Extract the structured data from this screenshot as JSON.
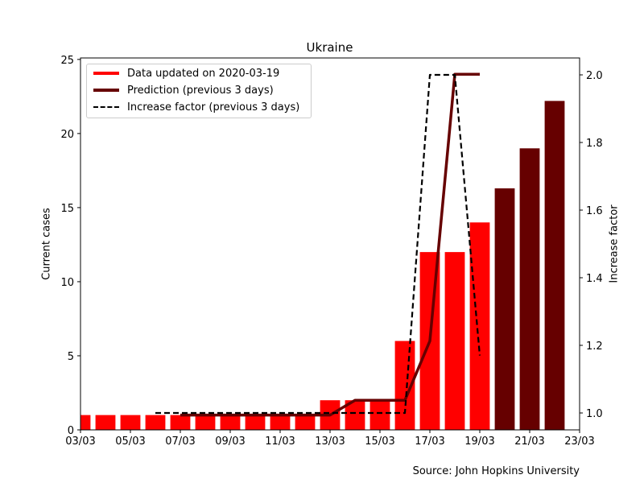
{
  "chart_data": {
    "type": "bar",
    "title": "Ukraine",
    "ylabel": "Current cases",
    "y2label": "Increase factor",
    "source": "Source: John Hopkins University",
    "xticks": [
      "03/03",
      "05/03",
      "07/03",
      "09/03",
      "11/03",
      "13/03",
      "15/03",
      "17/03",
      "19/03",
      "21/03",
      "23/03"
    ],
    "yticks": [
      "0",
      "5",
      "10",
      "15",
      "20",
      "25"
    ],
    "y2ticks": [
      "1.0",
      "1.2",
      "1.4",
      "1.6",
      "1.8",
      "2.0"
    ],
    "ylim": [
      0,
      25.1
    ],
    "y2lim": [
      0.95,
      2.05
    ],
    "xlim": [
      "03/03",
      "23/03"
    ],
    "legend_position": "top-left",
    "legend": [
      {
        "label": "Data updated on 2020-03-19",
        "color": "#ff0000",
        "style": "solid"
      },
      {
        "label": "Prediction (previous 3 days)",
        "color": "#660000",
        "style": "solid"
      },
      {
        "label": "Increase factor (previous 3 days)",
        "color": "#000000",
        "style": "dashed"
      }
    ],
    "series": [
      {
        "name": "Data updated on 2020-03-19",
        "color": "#ff0000",
        "kind": "bar",
        "x": [
          "03/03",
          "04/03",
          "05/03",
          "06/03",
          "07/03",
          "08/03",
          "09/03",
          "10/03",
          "11/03",
          "12/03",
          "13/03",
          "14/03",
          "15/03",
          "16/03",
          "17/03",
          "18/03",
          "19/03"
        ],
        "values": [
          1,
          1,
          1,
          1,
          1,
          1,
          1,
          1,
          1,
          1,
          2,
          2,
          2,
          6,
          12,
          12,
          14
        ]
      },
      {
        "name": "Prediction (previous 3 days)",
        "color": "#660000",
        "kind": "bar",
        "x": [
          "20/03",
          "21/03",
          "22/03"
        ],
        "values": [
          16.3,
          19.0,
          22.2
        ]
      },
      {
        "name": "Prediction (previous 3 days)",
        "color": "#660000",
        "kind": "line",
        "axis": "left",
        "x": [
          "07/03",
          "08/03",
          "09/03",
          "10/03",
          "11/03",
          "12/03",
          "13/03",
          "14/03",
          "15/03",
          "16/03",
          "17/03",
          "18/03",
          "19/03"
        ],
        "values": [
          1,
          1,
          1,
          1,
          1,
          1,
          1,
          2,
          2,
          2,
          6,
          24,
          24
        ]
      },
      {
        "name": "Increase factor (previous 3 days)",
        "color": "#000000",
        "kind": "line",
        "axis": "right",
        "x": [
          "06/03",
          "07/03",
          "08/03",
          "09/03",
          "10/03",
          "11/03",
          "12/03",
          "13/03",
          "14/03",
          "15/03",
          "16/03",
          "17/03",
          "18/03",
          "19/03"
        ],
        "values": [
          1,
          1,
          1,
          1,
          1,
          1,
          1,
          1,
          1,
          1,
          1,
          2,
          2,
          1.17
        ]
      }
    ]
  }
}
